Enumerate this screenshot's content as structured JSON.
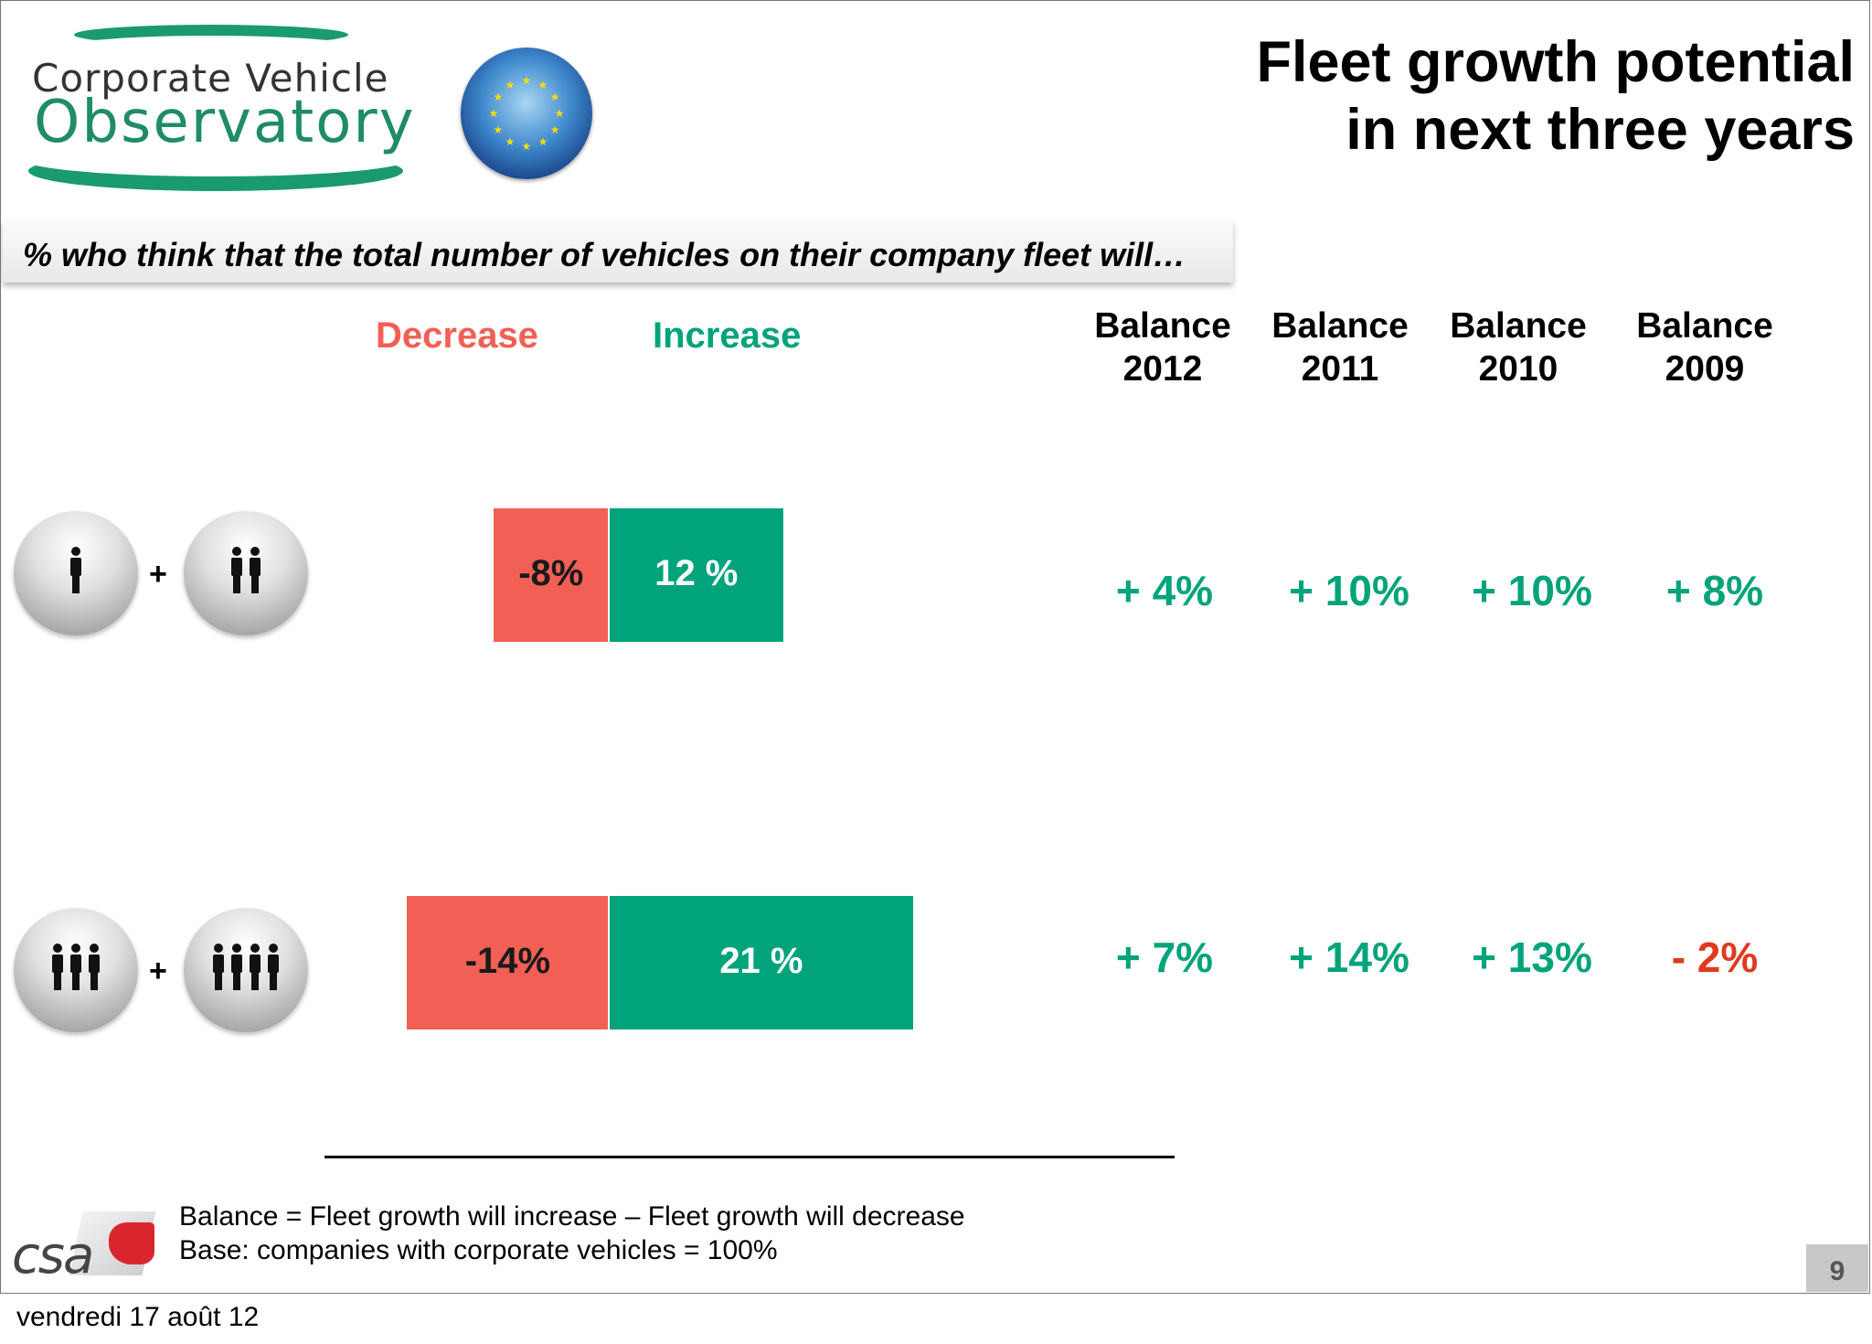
{
  "logo": {
    "line1": "Corporate Vehicle",
    "line2": "Observatory"
  },
  "title": {
    "line1": "Fleet growth potential",
    "line2": "in next three years"
  },
  "subtitle": "% who think that the total number of vehicles on their company fleet will…",
  "chart_data": {
    "type": "bar",
    "orientation": "horizontal-diverging",
    "title": "Fleet growth potential in next three years",
    "categories": [
      "1 + 2 persons",
      "3 + 4 persons"
    ],
    "series": [
      {
        "name": "Decrease",
        "values": [
          -8,
          -14
        ],
        "labels": [
          "-8%",
          "-14%"
        ],
        "color": "#f25f55"
      },
      {
        "name": "Increase",
        "values": [
          12,
          21
        ],
        "labels": [
          "12 %",
          "21 %"
        ],
        "color": "#00a37a"
      }
    ],
    "balance": {
      "headers": [
        {
          "line1": "Balance",
          "line2": "2012"
        },
        {
          "line1": "Balance",
          "line2": "2011"
        },
        {
          "line1": "Balance",
          "line2": "2010"
        },
        {
          "line1": "Balance",
          "line2": "2009"
        }
      ],
      "rows": [
        {
          "values": [
            4,
            10,
            10,
            8
          ],
          "labels": [
            "+ 4%",
            "+ 10%",
            "+ 10%",
            "+ 8%"
          ]
        },
        {
          "values": [
            7,
            14,
            13,
            -2
          ],
          "labels": [
            "+ 7%",
            "+ 14%",
            "+ 13%",
            "- 2%"
          ]
        }
      ]
    },
    "scale_px_per_pct": 15.8
  },
  "row_icons": [
    {
      "left_people": 1,
      "right_people": 2,
      "plus": "+"
    },
    {
      "left_people": 3,
      "right_people": 4,
      "plus": "+"
    }
  ],
  "footer": {
    "line1": "Balance = Fleet growth will increase – Fleet growth will decrease",
    "line2": "Base: companies with corporate vehicles = 100%",
    "brand": "csa",
    "page_number": "9",
    "date": "vendredi 17 août 12"
  },
  "colors": {
    "decrease": "#f25f55",
    "increase": "#00a37a",
    "negative_balance": "#e03a1e"
  }
}
